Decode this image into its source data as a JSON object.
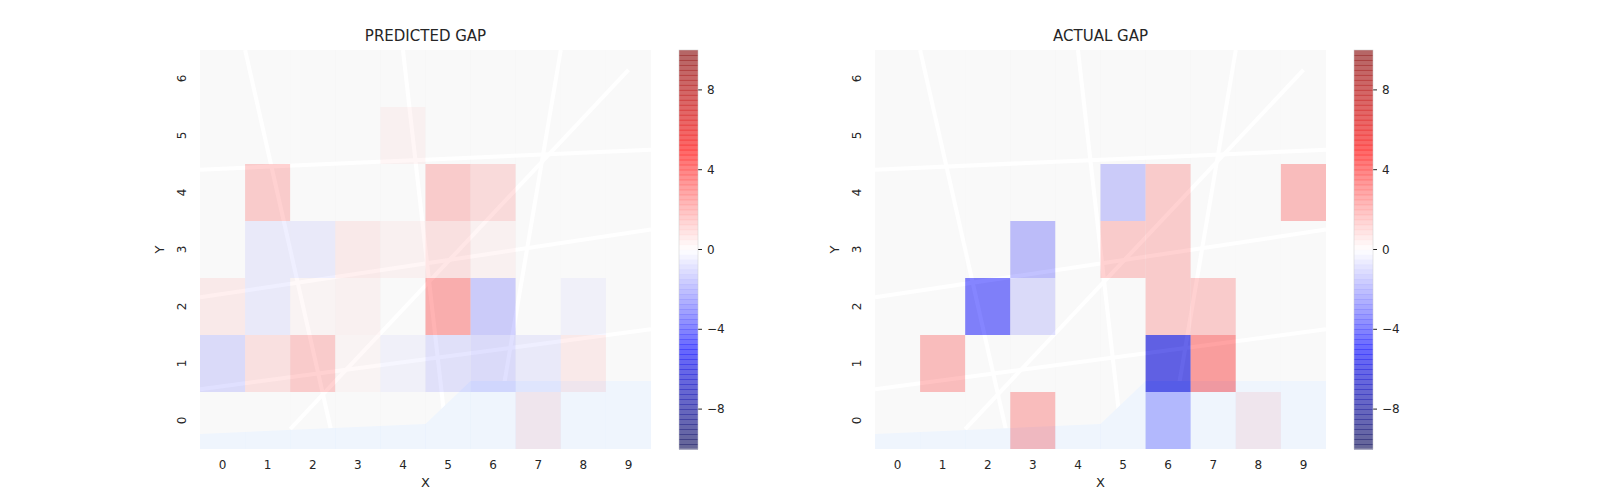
{
  "chart_data": [
    {
      "type": "heatmap",
      "title": "PREDICTED GAP",
      "x_label": "X",
      "y_label": "Y",
      "x": [
        0,
        1,
        2,
        3,
        4,
        5,
        6,
        7,
        8,
        9
      ],
      "y": [
        0,
        1,
        2,
        3,
        4,
        5,
        6
      ],
      "xlim": [
        -0.5,
        9.5
      ],
      "ylim": [
        -0.5,
        6.5
      ],
      "xticks": [
        0,
        1,
        2,
        3,
        4,
        5,
        6,
        7,
        8,
        9
      ],
      "yticks": [
        0,
        1,
        2,
        3,
        4,
        5,
        6
      ],
      "values": [
        [
          0,
          0,
          0,
          0,
          0,
          0,
          0,
          0.5,
          0,
          0
        ],
        [
          -1,
          0.8,
          1.5,
          0.2,
          -0.3,
          -0.8,
          -1,
          -0.5,
          0.5,
          0
        ],
        [
          0.5,
          -0.5,
          0.2,
          0.3,
          0,
          2.5,
          -1.5,
          0,
          -0.3,
          0
        ],
        [
          0,
          -0.5,
          -0.5,
          0.5,
          0.3,
          0.8,
          0.3,
          0,
          0,
          0
        ],
        [
          0,
          1.5,
          0,
          0,
          0,
          1.5,
          1,
          0,
          0,
          0
        ],
        [
          0,
          0,
          0,
          0,
          0.3,
          0,
          0,
          0,
          0,
          0
        ],
        [
          0,
          0,
          0,
          0,
          0,
          0,
          0,
          0,
          0,
          0
        ]
      ],
      "colorbar": {
        "range": [
          -10,
          10
        ],
        "ticks": [
          {
            "value": -8,
            "label": "−8"
          },
          {
            "value": -4,
            "label": "−4"
          },
          0,
          4,
          8
        ]
      }
    },
    {
      "type": "heatmap",
      "title": "ACTUAL GAP",
      "x_label": "X",
      "y_label": "Y",
      "x": [
        0,
        1,
        2,
        3,
        4,
        5,
        6,
        7,
        8,
        9
      ],
      "y": [
        0,
        1,
        2,
        3,
        4,
        5,
        6
      ],
      "xlim": [
        -0.5,
        9.5
      ],
      "ylim": [
        -0.5,
        6.5
      ],
      "xticks": [
        0,
        1,
        2,
        3,
        4,
        5,
        6,
        7,
        8,
        9
      ],
      "yticks": [
        0,
        1,
        2,
        3,
        4,
        5,
        6
      ],
      "values": [
        [
          0,
          0,
          0,
          2,
          0,
          0,
          -2,
          0,
          0.5,
          0
        ],
        [
          0,
          2,
          0,
          0,
          0,
          0,
          -6,
          3,
          0,
          0
        ],
        [
          0,
          0,
          -4,
          -1,
          0,
          0,
          1.5,
          1.5,
          0,
          0
        ],
        [
          0,
          0,
          0,
          -2,
          0,
          1.5,
          1.5,
          0,
          0,
          0
        ],
        [
          0,
          0,
          0,
          0,
          0,
          -1.5,
          1.5,
          0,
          0,
          2
        ],
        [
          0,
          0,
          0,
          0,
          0,
          0,
          0,
          0,
          0,
          0
        ],
        [
          0,
          0,
          0,
          0,
          0,
          0,
          0,
          0,
          0,
          0
        ]
      ],
      "colorbar": {
        "range": [
          -10,
          10
        ],
        "ticks": [
          {
            "value": -8,
            "label": "−8"
          },
          {
            "value": -4,
            "label": "−4"
          },
          0,
          4,
          8
        ]
      }
    }
  ]
}
